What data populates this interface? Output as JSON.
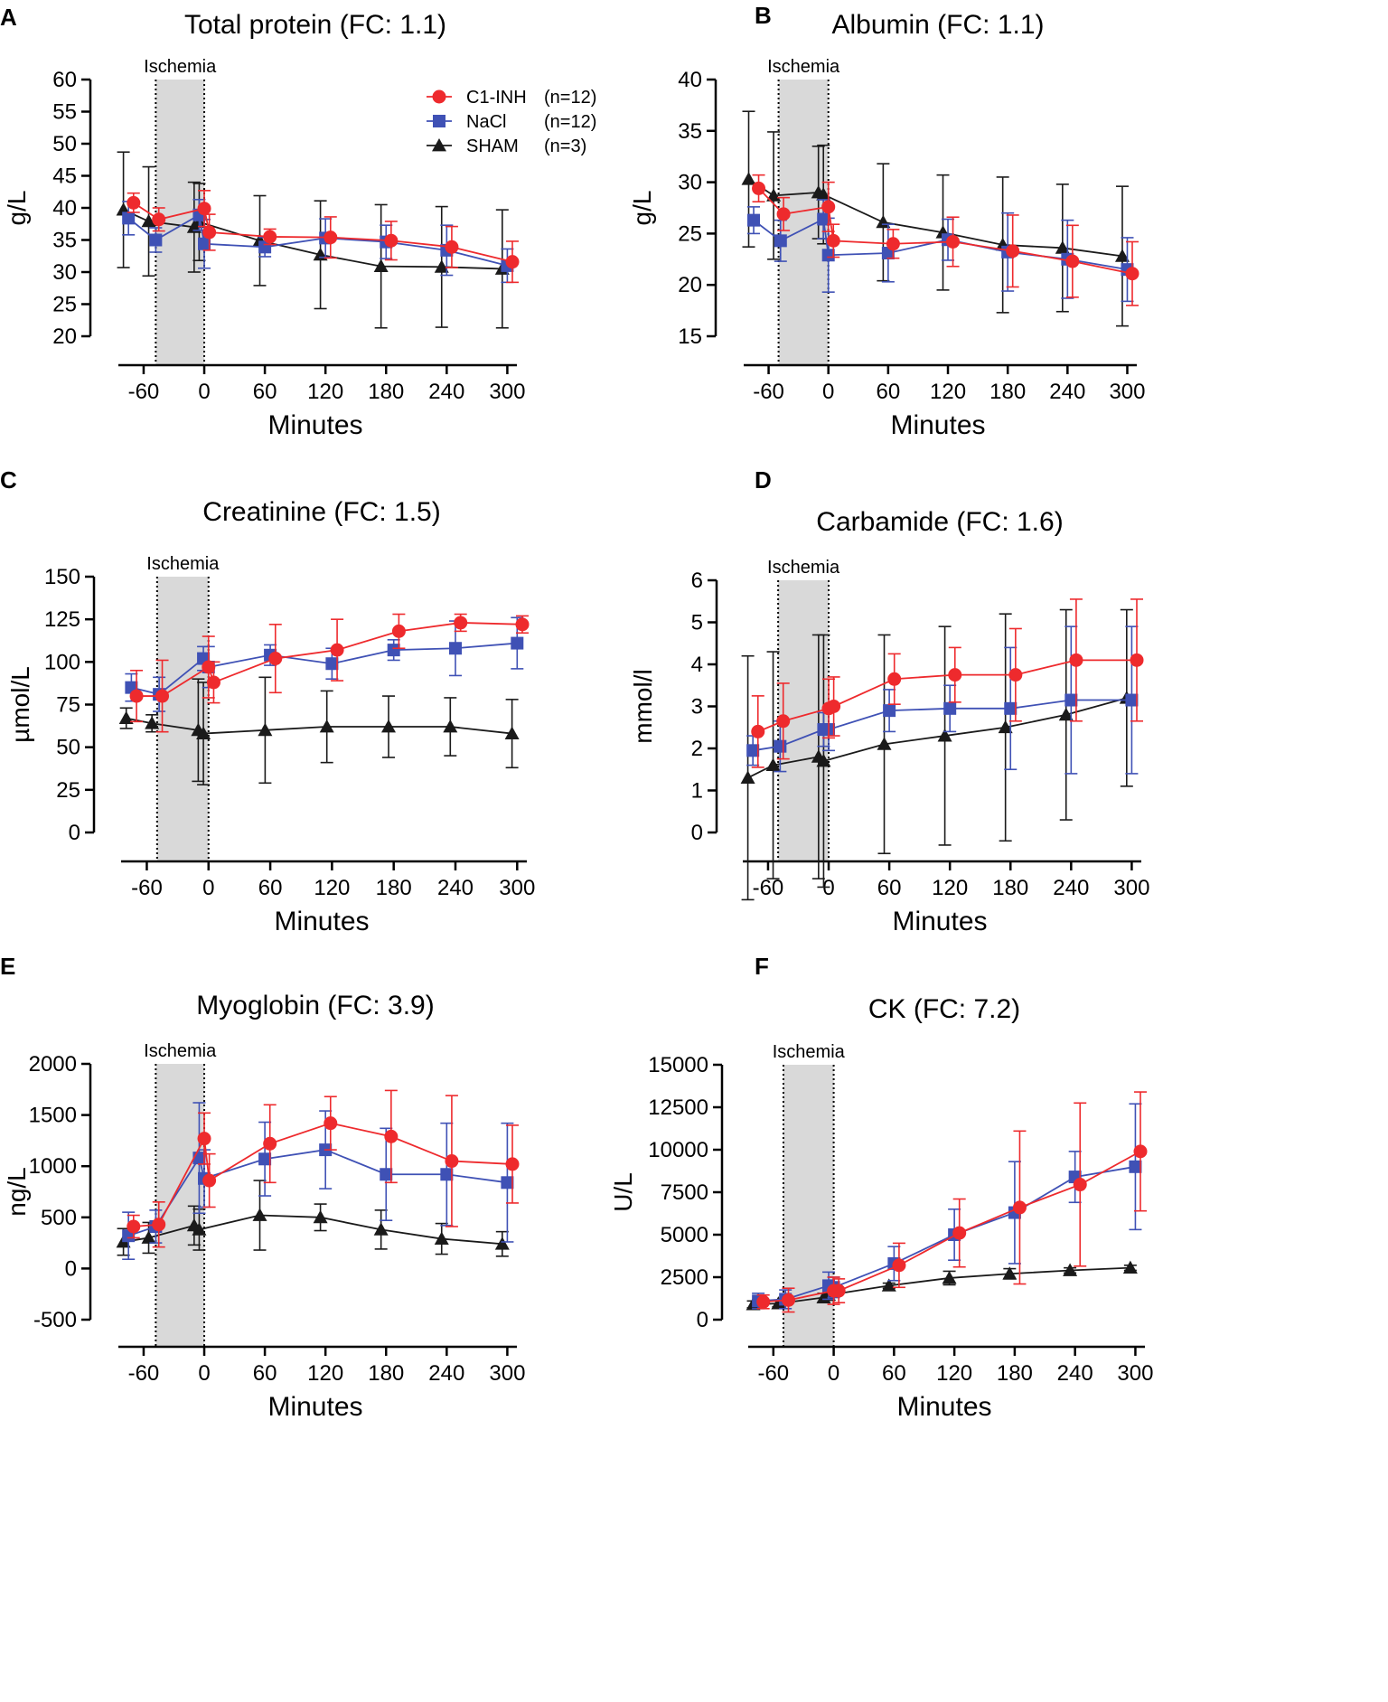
{
  "figure": {
    "legend": [
      {
        "label": "C1-INH",
        "n": "(n=12)",
        "color": "#ee2a2d",
        "marker": "circle"
      },
      {
        "label": "NaCl",
        "n": "(n=12)",
        "color": "#3f51b5",
        "marker": "square"
      },
      {
        "label": "SHAM",
        "n": "(n=3)",
        "color": "#1a1a1a",
        "marker": "triangle"
      }
    ],
    "ischemia_label": "Ischemia"
  },
  "chart_data": [
    {
      "panel": "A",
      "type": "line",
      "title": "Total protein (FC: 1.1)",
      "xlabel": "Minutes",
      "ylabel": "g/L",
      "xlim": [
        -85,
        305
      ],
      "ylim": [
        20,
        60
      ],
      "xticks": [
        -60,
        0,
        60,
        120,
        180,
        240,
        300
      ],
      "xtick_labels": [
        "-60",
        "0",
        "60",
        "120",
        "180",
        "240",
        "300"
      ],
      "yticks": [
        20,
        25,
        30,
        35,
        40,
        45,
        50,
        55,
        60
      ],
      "ytick_labels": [
        "20",
        "25",
        "30",
        "35",
        "40",
        "45",
        "50",
        "55",
        "60"
      ],
      "ischemia": [
        -48,
        0
      ],
      "series": [
        {
          "name": "C1-INH",
          "x": [
            -70,
            -45,
            0,
            5,
            65,
            125,
            185,
            245,
            305
          ],
          "y": [
            40.8,
            38.2,
            39.9,
            36.2,
            35.5,
            35.4,
            34.9,
            33.9,
            31.6
          ],
          "err": [
            1.5,
            1.8,
            2.8,
            2.8,
            1.2,
            3.2,
            3.0,
            3.2,
            3.2
          ]
        },
        {
          "name": "NaCl",
          "x": [
            -75,
            -48,
            -5,
            0,
            60,
            120,
            180,
            240,
            300
          ],
          "y": [
            38.4,
            35.0,
            38.9,
            34.4,
            33.9,
            35.3,
            34.7,
            33.4,
            31.0
          ],
          "err": [
            2.6,
            1.9,
            2.4,
            3.8,
            1.5,
            3.0,
            2.6,
            3.9,
            2.6
          ]
        },
        {
          "name": "SHAM",
          "x": [
            -80,
            -55,
            -10,
            -5,
            55,
            115,
            175,
            235,
            295
          ],
          "y": [
            39.7,
            37.9,
            37.0,
            37.8,
            34.9,
            32.7,
            30.9,
            30.8,
            30.5
          ],
          "err": [
            9.0,
            8.5,
            7.0,
            6.0,
            7.0,
            8.4,
            9.6,
            9.4,
            9.2
          ]
        }
      ]
    },
    {
      "panel": "B",
      "type": "line",
      "title": "Albumin (FC: 1.1)",
      "xlabel": "Minutes",
      "ylabel": "g/L",
      "xlim": [
        -85,
        305
      ],
      "ylim": [
        15,
        40
      ],
      "xticks": [
        -60,
        0,
        60,
        120,
        180,
        240,
        300
      ],
      "xtick_labels": [
        "-60",
        "0",
        "60",
        "120",
        "180",
        "240",
        "300"
      ],
      "yticks": [
        15,
        20,
        25,
        30,
        35,
        40
      ],
      "ytick_labels": [
        "15",
        "20",
        "25",
        "30",
        "35",
        "40"
      ],
      "ischemia": [
        -50,
        0
      ],
      "series": [
        {
          "name": "C1-INH",
          "x": [
            -70,
            -45,
            0,
            5,
            65,
            125,
            185,
            245,
            305
          ],
          "y": [
            29.4,
            26.9,
            27.6,
            24.3,
            24.0,
            24.2,
            23.3,
            22.3,
            21.1
          ],
          "err": [
            1.3,
            1.6,
            2.4,
            1.6,
            1.4,
            2.4,
            3.5,
            3.5,
            3.1
          ]
        },
        {
          "name": "NaCl",
          "x": [
            -75,
            -48,
            -5,
            0,
            60,
            120,
            180,
            240,
            300
          ],
          "y": [
            26.3,
            24.3,
            26.4,
            22.9,
            23.1,
            24.4,
            23.2,
            22.5,
            21.5
          ],
          "err": [
            1.3,
            2.0,
            1.9,
            3.6,
            2.8,
            2.0,
            3.8,
            3.8,
            3.1
          ]
        },
        {
          "name": "SHAM",
          "x": [
            -80,
            -55,
            -10,
            -5,
            55,
            115,
            175,
            235,
            295
          ],
          "y": [
            30.3,
            28.7,
            29.0,
            28.8,
            26.1,
            25.1,
            23.9,
            23.6,
            22.8
          ],
          "err": [
            6.6,
            6.2,
            4.5,
            4.8,
            5.7,
            5.6,
            6.6,
            6.2,
            6.8
          ]
        }
      ]
    },
    {
      "panel": "C",
      "type": "line",
      "title": "Creatinine (FC: 1.5)",
      "xlabel": "Minutes",
      "ylabel": "µmol/L",
      "xlim": [
        -85,
        305
      ],
      "ylim": [
        0,
        150
      ],
      "xticks": [
        -60,
        0,
        60,
        120,
        180,
        240,
        300
      ],
      "xtick_labels": [
        "-60",
        "0",
        "60",
        "120",
        "180",
        "240",
        "300"
      ],
      "yticks": [
        0,
        25,
        50,
        75,
        100,
        125,
        150
      ],
      "ytick_labels": [
        "0",
        "25",
        "50",
        "75",
        "100",
        "125",
        "150"
      ],
      "ischemia": [
        -50,
        0
      ],
      "series": [
        {
          "name": "C1-INH",
          "x": [
            -70,
            -45,
            0,
            5,
            65,
            125,
            185,
            245,
            305
          ],
          "y": [
            80,
            80,
            97,
            88,
            102,
            107,
            118,
            123,
            122
          ],
          "err": [
            15,
            21,
            18,
            12,
            20,
            18,
            10,
            5,
            5
          ]
        },
        {
          "name": "NaCl",
          "x": [
            -75,
            -48,
            -5,
            0,
            60,
            120,
            180,
            240,
            300
          ],
          "y": [
            85,
            81,
            102,
            97,
            104,
            99,
            107,
            108,
            111
          ],
          "err": [
            8,
            10,
            7,
            12,
            6,
            9,
            6,
            16,
            15
          ]
        },
        {
          "name": "SHAM",
          "x": [
            -80,
            -55,
            -10,
            -5,
            55,
            115,
            175,
            235,
            295
          ],
          "y": [
            67,
            64,
            60,
            58,
            60,
            62,
            62,
            62,
            58
          ],
          "err": [
            6,
            5,
            30,
            30,
            31,
            21,
            18,
            17,
            20
          ]
        }
      ]
    },
    {
      "panel": "D",
      "type": "line",
      "title": "Carbamide (FC: 1.6)",
      "xlabel": "Minutes",
      "ylabel": "mmol/l",
      "xlim": [
        -85,
        305
      ],
      "ylim": [
        0,
        6
      ],
      "xticks": [
        -60,
        0,
        60,
        120,
        180,
        240,
        300
      ],
      "xtick_labels": [
        "-60",
        "0",
        "60",
        "120",
        "180",
        "240",
        "300"
      ],
      "yticks": [
        0,
        1,
        2,
        3,
        4,
        5,
        6
      ],
      "ytick_labels": [
        "0",
        "1",
        "2",
        "3",
        "4",
        "5",
        "6"
      ],
      "ischemia": [
        -50,
        0
      ],
      "series": [
        {
          "name": "C1-INH",
          "x": [
            -70,
            -45,
            0,
            5,
            65,
            125,
            185,
            245,
            305
          ],
          "y": [
            2.4,
            2.65,
            2.95,
            3.0,
            3.65,
            3.75,
            3.75,
            4.1,
            4.1
          ],
          "err": [
            0.85,
            0.9,
            0.7,
            0.7,
            0.6,
            0.65,
            1.1,
            1.45,
            1.45
          ]
        },
        {
          "name": "NaCl",
          "x": [
            -75,
            -48,
            -5,
            0,
            60,
            120,
            180,
            240,
            300
          ],
          "y": [
            1.95,
            2.05,
            2.45,
            2.45,
            2.9,
            2.95,
            2.95,
            3.15,
            3.15
          ],
          "err": [
            0.35,
            0.6,
            0.4,
            0.5,
            0.5,
            0.55,
            1.45,
            1.75,
            1.75
          ]
        },
        {
          "name": "SHAM",
          "x": [
            -80,
            -55,
            -10,
            -5,
            55,
            115,
            175,
            235,
            295
          ],
          "y": [
            1.3,
            1.6,
            1.8,
            1.7,
            2.1,
            2.3,
            2.5,
            2.8,
            3.2
          ],
          "err": [
            2.9,
            2.7,
            2.9,
            3.0,
            2.6,
            2.6,
            2.7,
            2.5,
            2.1
          ]
        }
      ]
    },
    {
      "panel": "E",
      "type": "line",
      "title": "Myoglobin (FC: 3.9)",
      "xlabel": "Minutes",
      "ylabel": "ng/L",
      "xlim": [
        -85,
        305
      ],
      "ylim": [
        -500,
        2000
      ],
      "xticks": [
        -60,
        0,
        60,
        120,
        180,
        240,
        300
      ],
      "xtick_labels": [
        "-60",
        "0",
        "60",
        "120",
        "180",
        "240",
        "300"
      ],
      "yticks": [
        -500,
        0,
        500,
        1000,
        1500,
        2000
      ],
      "ytick_labels": [
        "-500",
        "0",
        "500",
        "1000",
        "1500",
        "2000"
      ],
      "ischemia": [
        -48,
        0
      ],
      "series": [
        {
          "name": "C1-INH",
          "x": [
            -70,
            -45,
            0,
            5,
            65,
            125,
            185,
            245,
            305
          ],
          "y": [
            410,
            430,
            1270,
            860,
            1220,
            1420,
            1290,
            1050,
            1020
          ],
          "err": [
            110,
            220,
            250,
            260,
            380,
            260,
            450,
            640,
            380
          ]
        },
        {
          "name": "NaCl",
          "x": [
            -75,
            -48,
            -5,
            0,
            60,
            120,
            180,
            240,
            300
          ],
          "y": [
            320,
            410,
            1080,
            880,
            1070,
            1160,
            920,
            920,
            840
          ],
          "err": [
            230,
            160,
            540,
            280,
            360,
            380,
            450,
            500,
            580
          ]
        },
        {
          "name": "SHAM",
          "x": [
            -80,
            -55,
            -10,
            -5,
            55,
            115,
            175,
            235,
            295
          ],
          "y": [
            260,
            300,
            420,
            380,
            520,
            500,
            380,
            290,
            240
          ],
          "err": [
            130,
            150,
            190,
            200,
            340,
            130,
            190,
            150,
            120
          ]
        }
      ]
    },
    {
      "panel": "F",
      "type": "line",
      "title": "CK (FC:  7.2)",
      "xlabel": "Minutes",
      "ylabel": "U/L",
      "xlim": [
        -85,
        305
      ],
      "ylim": [
        0,
        15000
      ],
      "xticks": [
        -60,
        0,
        60,
        120,
        180,
        240,
        300
      ],
      "xtick_labels": [
        "-60",
        "0",
        "60",
        "120",
        "180",
        "240",
        "300"
      ],
      "yticks": [
        0,
        2500,
        5000,
        7500,
        10000,
        12500,
        15000
      ],
      "ytick_labels": [
        "0",
        "2500",
        "5000",
        "7500",
        "10000",
        "12500",
        "15000"
      ],
      "ischemia": [
        -50,
        0
      ],
      "series": [
        {
          "name": "C1-INH",
          "x": [
            -70,
            -45,
            0,
            5,
            65,
            125,
            185,
            245,
            305
          ],
          "y": [
            1050,
            1150,
            1700,
            1700,
            3200,
            5100,
            6600,
            7950,
            9900
          ],
          "err": [
            400,
            700,
            800,
            700,
            1300,
            2000,
            4500,
            4800,
            3500
          ]
        },
        {
          "name": "NaCl",
          "x": [
            -75,
            -48,
            -5,
            0,
            60,
            120,
            180,
            240,
            300
          ],
          "y": [
            1100,
            1200,
            2000,
            1900,
            3300,
            5000,
            6300,
            8400,
            9000
          ],
          "err": [
            450,
            550,
            800,
            600,
            1000,
            1500,
            3000,
            1500,
            3700
          ]
        },
        {
          "name": "SHAM",
          "x": [
            -80,
            -55,
            -10,
            -5,
            55,
            115,
            175,
            235,
            295
          ],
          "y": [
            900,
            950,
            1300,
            1450,
            2000,
            2450,
            2700,
            2900,
            3050
          ],
          "err": [
            200,
            200,
            250,
            300,
            150,
            400,
            300,
            150,
            150
          ]
        }
      ]
    }
  ]
}
